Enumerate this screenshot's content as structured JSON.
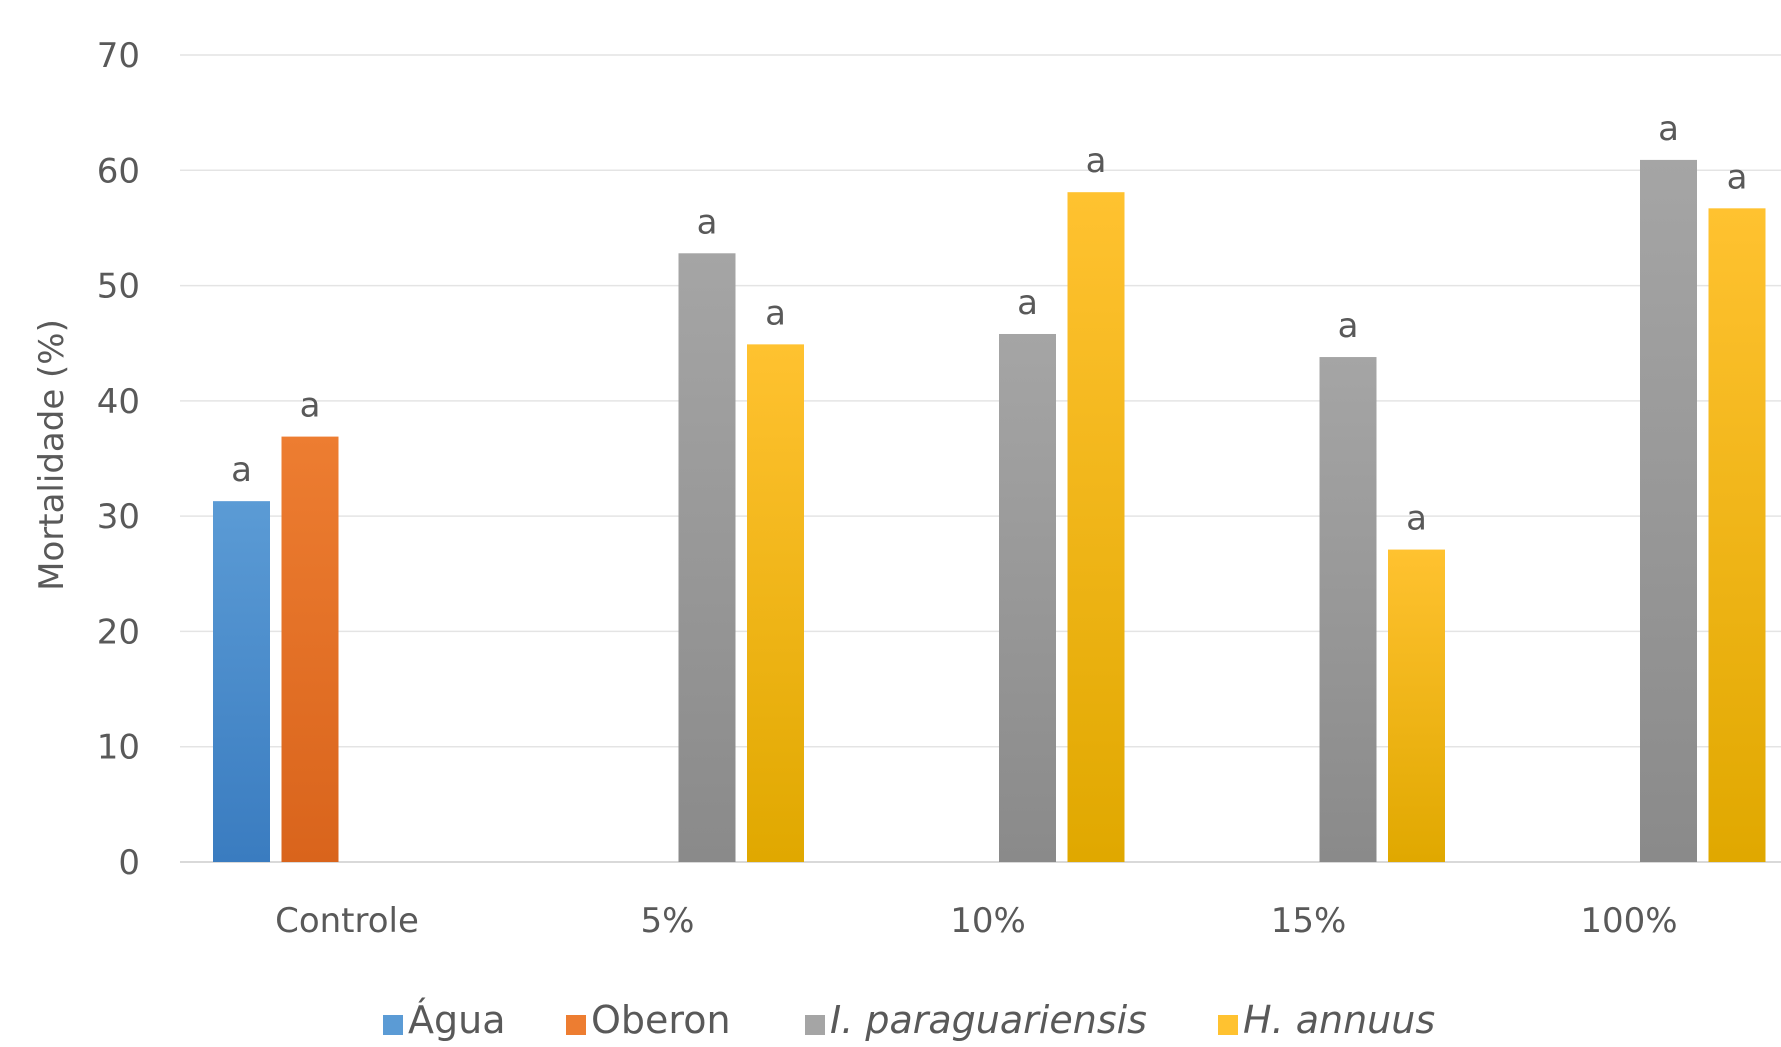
{
  "chart_data": {
    "type": "bar",
    "ylabel": "Mortalidade (%)",
    "xlabel": "",
    "ylim": [
      0,
      70
    ],
    "yticks": [
      0,
      10,
      20,
      30,
      40,
      50,
      60,
      70
    ],
    "grid": true,
    "legend_position": "bottom",
    "categories": [
      "Controle",
      "5%",
      "10%",
      "15%",
      "100%"
    ],
    "series": [
      {
        "name": "Água",
        "color_top": "#5b9bd5",
        "color_bottom": "#3a7cc0",
        "italic": false,
        "values": [
          31.3,
          null,
          null,
          null,
          null
        ],
        "labels": [
          "a",
          null,
          null,
          null,
          null
        ]
      },
      {
        "name": "Oberon",
        "color_top": "#ed7d31",
        "color_bottom": "#d9641c",
        "italic": false,
        "values": [
          36.9,
          null,
          null,
          null,
          null
        ],
        "labels": [
          "a",
          null,
          null,
          null,
          null
        ]
      },
      {
        "name": "I. paraguariensis",
        "color_top": "#a5a5a5",
        "color_bottom": "#8a8a8a",
        "italic": true,
        "values": [
          null,
          52.8,
          45.8,
          43.8,
          60.9
        ],
        "labels": [
          null,
          "a",
          "a",
          "a",
          "a"
        ]
      },
      {
        "name": "H. annuus",
        "color_top": "#ffc230",
        "color_bottom": "#e0a800",
        "italic": true,
        "values": [
          null,
          44.9,
          58.1,
          27.1,
          56.7
        ],
        "labels": [
          null,
          "a",
          "a",
          "a",
          "a"
        ]
      }
    ]
  }
}
